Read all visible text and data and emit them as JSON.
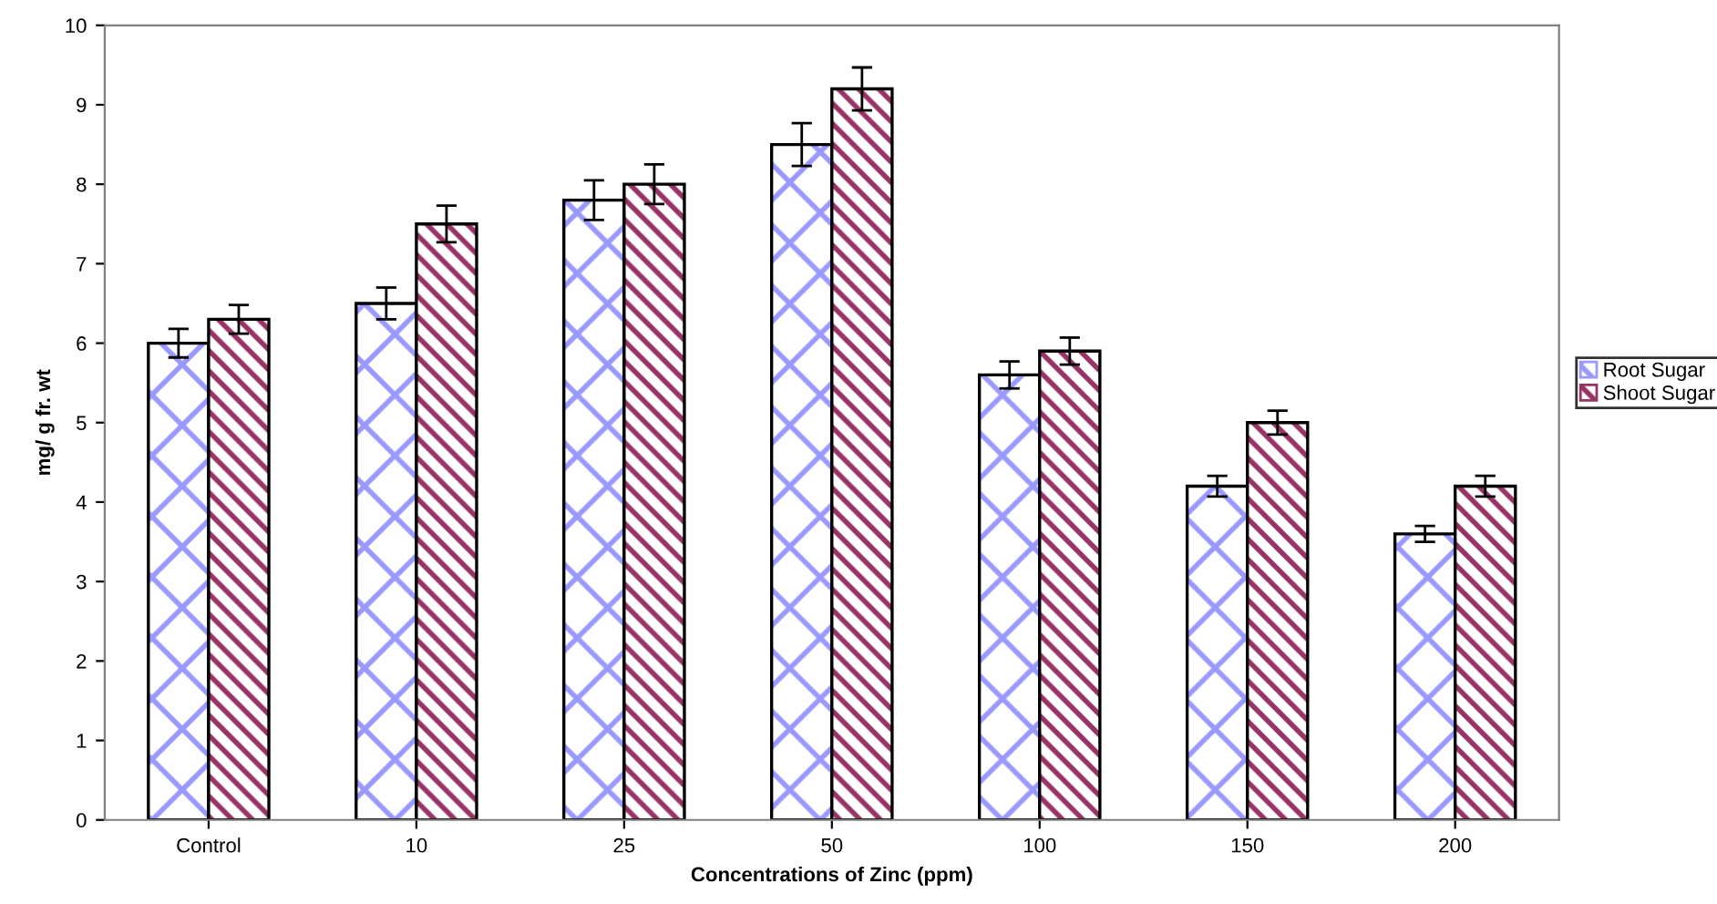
{
  "chart_data": {
    "type": "bar",
    "xlabel": "Concentrations of Zinc (ppm)",
    "ylabel": "mg/ g fr. wt",
    "categories": [
      "Control",
      "10",
      "25",
      "50",
      "100",
      "150",
      "200"
    ],
    "series": [
      {
        "name": "Root Sugar",
        "color": "#9999ff",
        "values": [
          6.0,
          6.5,
          7.8,
          8.5,
          5.6,
          4.2,
          3.6
        ],
        "errors": [
          0.18,
          0.2,
          0.25,
          0.27,
          0.17,
          0.13,
          0.1
        ]
      },
      {
        "name": "Shoot Sugar",
        "color": "#993366",
        "values": [
          6.3,
          7.5,
          8.0,
          9.2,
          5.9,
          5.0,
          4.2
        ],
        "errors": [
          0.18,
          0.23,
          0.25,
          0.27,
          0.17,
          0.15,
          0.13
        ]
      }
    ],
    "ylim": [
      0,
      10
    ],
    "yticks": [
      0,
      1,
      2,
      3,
      4,
      5,
      6,
      7,
      8,
      9,
      10
    ],
    "grid": false,
    "legend": "right"
  }
}
